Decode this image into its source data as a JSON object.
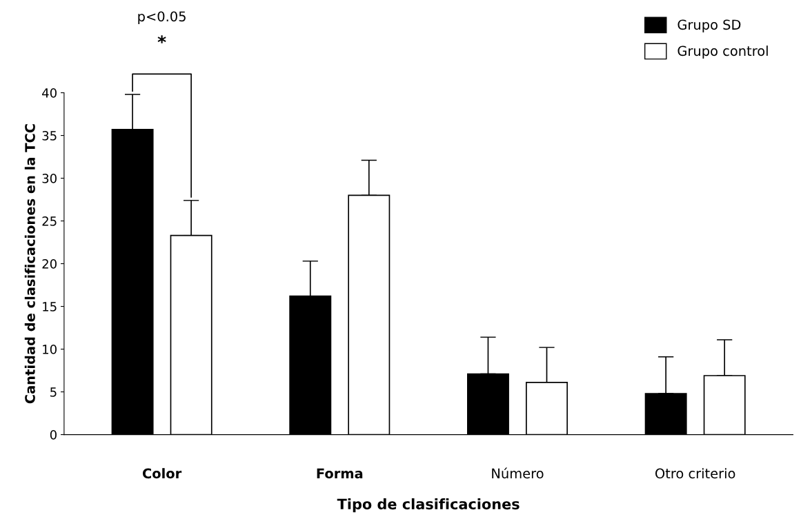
{
  "chart_data": {
    "type": "bar",
    "xlabel": "Tipo de clasificaciones",
    "ylabel": "Cantidad de clasificaciones en la TCC",
    "categories": [
      "Color",
      "Forma",
      "Número",
      "Otro criterio"
    ],
    "series": [
      {
        "name": "Grupo SD",
        "color": "#000000",
        "values": [
          35.7,
          16.2,
          7.1,
          4.8
        ],
        "errors": [
          [
            35.7,
            39.8
          ],
          [
            16.2,
            20.3
          ],
          [
            7.1,
            11.4
          ],
          [
            4.8,
            9.1
          ]
        ]
      },
      {
        "name": "Grupo control",
        "color": "#ffffff",
        "values": [
          23.3,
          28.0,
          6.1,
          6.9
        ],
        "errors": [
          [
            23.3,
            27.4
          ],
          [
            28.0,
            32.1
          ],
          [
            6.1,
            10.2
          ],
          [
            6.9,
            11.1
          ]
        ]
      }
    ],
    "ylim": [
      0,
      40
    ],
    "yticks": [
      0,
      5,
      10,
      15,
      20,
      25,
      30,
      35,
      40
    ],
    "grid": false,
    "legend": "top right",
    "annotations": [
      "p<0.05",
      "*"
    ]
  }
}
